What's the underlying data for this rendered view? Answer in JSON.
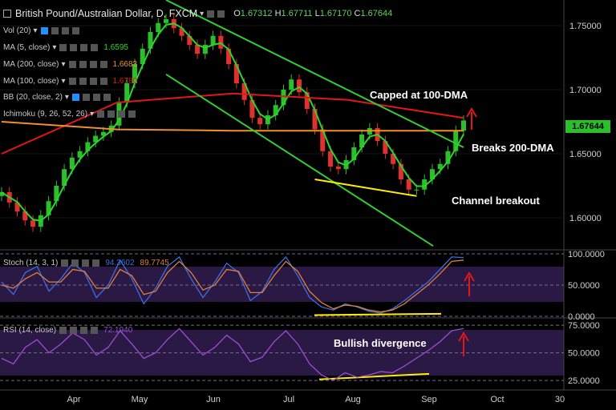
{
  "header": {
    "title": "British Pound/Australian Dollar, D, FXCM",
    "open_label": "O",
    "open": "1.67312",
    "high_label": "H",
    "high": "1.67711",
    "low_label": "L",
    "low": "1.67170",
    "close_label": "C",
    "close": "1.67644"
  },
  "indicators": [
    {
      "label": "Vol (20)",
      "value": ""
    },
    {
      "label": "MA (5, close)",
      "value": "1.6595"
    },
    {
      "label": "MA (200, close)",
      "value": "1.6683"
    },
    {
      "label": "MA (100, close)",
      "value": "1.6780"
    },
    {
      "label": "BB (20, close, 2)",
      "value": ""
    },
    {
      "label": "Ichimoku (9, 26, 52, 26)",
      "value": ""
    }
  ],
  "stoch": {
    "label": "Stoch (14, 3, 1)",
    "k": "94.3602",
    "d": "89.7745"
  },
  "rsi": {
    "label": "RSI (14, close)",
    "value": "72.1940"
  },
  "annotations": {
    "capped": "Capped at 100-DMA",
    "breaks": "Breaks 200-DMA",
    "channel": "Channel breakout",
    "divergence": "Bullish divergence"
  },
  "last_price": "1.67644",
  "colors": {
    "up": "#2bbf2b",
    "down": "#e03030",
    "ma5": "#2bd62b",
    "ma100": "#e01818",
    "ma200": "#f0902a",
    "channel": "#33cc33",
    "trend": "#ffee00",
    "arrow": "#e01818",
    "osc_bg": "#2a1845",
    "stoch_k": "#3d6fe0",
    "stoch_d": "#e07f3c",
    "rsi": "#9b4fd0"
  },
  "chart_data": [
    {
      "type": "line",
      "title": "British Pound/Australian Dollar, D, FXCM",
      "x_ticks": [
        "Apr",
        "May",
        "Jun",
        "Jul",
        "Aug",
        "Sep",
        "Oct",
        "30"
      ],
      "y_ticks": [
        "1.75000",
        "1.70000",
        "1.65000",
        "1.60000"
      ],
      "ylim": [
        1.575,
        1.77
      ],
      "series": [
        {
          "name": "Close",
          "values": [
            1.62,
            1.612,
            1.605,
            1.598,
            1.593,
            1.602,
            1.613,
            1.625,
            1.638,
            1.647,
            1.652,
            1.659,
            1.664,
            1.667,
            1.672,
            1.69,
            1.705,
            1.72,
            1.732,
            1.745,
            1.752,
            1.755,
            1.748,
            1.742,
            1.735,
            1.728,
            1.735,
            1.742,
            1.732,
            1.72,
            1.705,
            1.692,
            1.678,
            1.673,
            1.68,
            1.688,
            1.7,
            1.708,
            1.698,
            1.685,
            1.669,
            1.652,
            1.64,
            1.638,
            1.645,
            1.655,
            1.665,
            1.67,
            1.66,
            1.65,
            1.642,
            1.63,
            1.622,
            1.622,
            1.63,
            1.638,
            1.642,
            1.652,
            1.668,
            1.676
          ]
        },
        {
          "name": "MA (100, close)",
          "values": [
            1.65,
            1.69,
            1.697,
            1.692,
            1.678
          ]
        },
        {
          "name": "MA (200, close)",
          "values": [
            1.675,
            1.669,
            1.668,
            1.668,
            1.668
          ]
        }
      ]
    },
    {
      "type": "line",
      "title": "Stoch (14, 3, 1)",
      "y_ticks": [
        "100.0000",
        "50.0000",
        "0.0000"
      ],
      "ylim": [
        0,
        100
      ],
      "series": [
        {
          "name": "%K",
          "values": [
            55,
            35,
            70,
            80,
            40,
            60,
            85,
            70,
            30,
            50,
            90,
            60,
            20,
            45,
            80,
            95,
            60,
            30,
            55,
            85,
            70,
            25,
            40,
            75,
            95,
            65,
            30,
            15,
            10,
            20,
            15,
            8,
            5,
            12,
            25,
            40,
            55,
            75,
            95,
            94
          ]
        },
        {
          "name": "%D",
          "values": [
            50,
            45,
            60,
            70,
            55,
            55,
            75,
            72,
            45,
            45,
            75,
            65,
            35,
            40,
            70,
            88,
            70,
            42,
            50,
            75,
            72,
            38,
            38,
            65,
            88,
            72,
            40,
            22,
            12,
            18,
            16,
            10,
            7,
            10,
            20,
            35,
            50,
            68,
            88,
            90
          ]
        }
      ]
    },
    {
      "type": "line",
      "title": "RSI (14, close)",
      "y_ticks": [
        "75.0000",
        "50.0000",
        "25.0000"
      ],
      "ylim": [
        20,
        78
      ],
      "series": [
        {
          "name": "RSI",
          "values": [
            45,
            40,
            55,
            62,
            50,
            58,
            68,
            62,
            48,
            55,
            70,
            58,
            45,
            50,
            62,
            72,
            60,
            48,
            55,
            66,
            58,
            42,
            46,
            60,
            70,
            58,
            40,
            30,
            25,
            32,
            28,
            30,
            33,
            32,
            38,
            45,
            52,
            60,
            70,
            72
          ]
        }
      ]
    }
  ]
}
